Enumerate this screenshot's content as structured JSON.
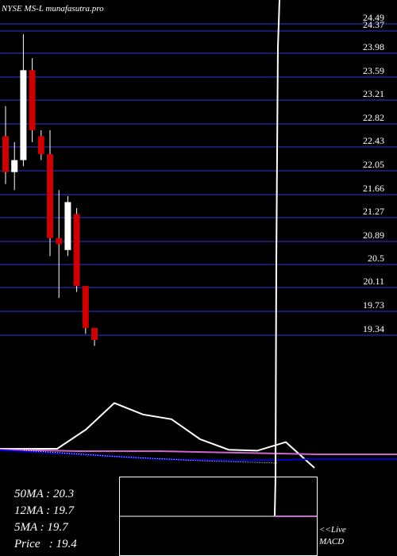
{
  "header": {
    "ticker": "NYSE MS-L munafasutra.pro"
  },
  "stats": {
    "ma50": "50MA : 20.3",
    "ma12": "12MA : 19.7",
    "ma5": "5MA : 19.7",
    "price": "Price   : 19.4"
  },
  "live": {
    "line1": "<<Live",
    "line2": "MACD"
  },
  "colors": {
    "background": "#000000",
    "grid": "#1a1a6e",
    "up_candle": "#ffffff",
    "down_candle": "#cc0000",
    "price_line": "#ffffff",
    "ma_line": "#cc66cc",
    "ma_line2": "#0000cc",
    "text": "#ffffff"
  },
  "chart_data": {
    "type": "candlestick",
    "title": "NYSE MS-L munafasutra.pro",
    "y_tick_labels": [
      "24.49",
      "24.37",
      "23.98",
      "23.59",
      "23.21",
      "22.82",
      "22.43",
      "22.05",
      "21.66",
      "21.27",
      "20.89",
      "20.5",
      "20.11",
      "19.73",
      "19.34"
    ],
    "ylim": [
      19.3,
      24.6
    ],
    "candles": [
      {
        "open": 22.7,
        "close": 22.1,
        "high": 23.2,
        "low": 21.9,
        "dir": "down"
      },
      {
        "open": 22.1,
        "close": 22.3,
        "high": 22.6,
        "low": 21.8,
        "dir": "up"
      },
      {
        "open": 22.3,
        "close": 23.8,
        "high": 24.4,
        "low": 22.2,
        "dir": "up"
      },
      {
        "open": 23.8,
        "close": 22.8,
        "high": 24.0,
        "low": 22.6,
        "dir": "down"
      },
      {
        "open": 22.7,
        "close": 22.4,
        "high": 22.8,
        "low": 22.3,
        "dir": "down"
      },
      {
        "open": 22.4,
        "close": 21.0,
        "high": 22.8,
        "low": 20.7,
        "dir": "down"
      },
      {
        "open": 21.0,
        "close": 20.9,
        "high": 21.8,
        "low": 20.0,
        "dir": "down"
      },
      {
        "open": 20.8,
        "close": 21.6,
        "high": 21.7,
        "low": 20.7,
        "dir": "up"
      },
      {
        "open": 21.4,
        "close": 20.2,
        "high": 21.5,
        "low": 20.1,
        "dir": "down"
      },
      {
        "open": 20.2,
        "close": 19.5,
        "high": 20.2,
        "low": 19.4,
        "dir": "down"
      },
      {
        "open": 19.5,
        "close": 19.3,
        "high": 19.5,
        "low": 19.2,
        "dir": "down"
      }
    ],
    "volume_line": [
      0,
      0,
      0,
      0.2,
      0.48,
      0.36,
      0.31,
      0.1,
      -0.01,
      -0.02,
      0.07,
      -0.2
    ],
    "ma_lines": [
      {
        "name": "50MA",
        "value": 20.3
      },
      {
        "name": "12MA",
        "value": 19.7
      },
      {
        "name": "5MA",
        "value": 19.7
      }
    ]
  }
}
